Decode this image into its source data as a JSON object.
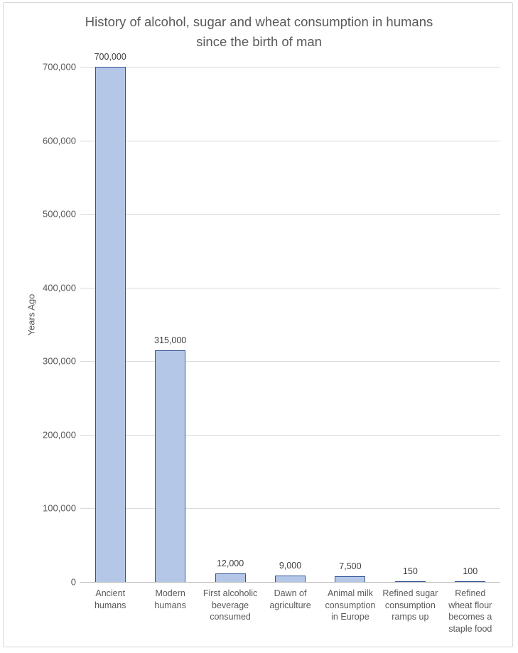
{
  "window": {
    "background": "#FFFFFF",
    "border_color": "#D9D9D9"
  },
  "chart_data": {
    "type": "bar",
    "title": "History of alcohol, sugar and wheat consumption in humans since the birth of man",
    "xlabel": "",
    "ylabel": "Years Ago",
    "categories": [
      "Ancient humans",
      "Modern humans",
      "First alcoholic beverage consumed",
      "Dawn of agriculture",
      "Animal milk consumption in Europe",
      "Refined sugar consumption ramps up",
      "Refined wheat flour becomes a staple food"
    ],
    "category_lines": [
      [
        "Ancient",
        "humans"
      ],
      [
        "Modern",
        "humans"
      ],
      [
        "First alcoholic",
        "beverage",
        "consumed"
      ],
      [
        "Dawn of",
        "agriculture"
      ],
      [
        "Animal milk",
        "consumption",
        "in Europe"
      ],
      [
        "Refined sugar",
        "consumption",
        "ramps up"
      ],
      [
        "Refined",
        "wheat flour",
        "becomes a",
        "staple food"
      ]
    ],
    "values": [
      700000,
      315000,
      12000,
      9000,
      7500,
      150,
      100
    ],
    "data_labels": [
      "700,000",
      "315,000",
      "12,000",
      "9,000",
      "7,500",
      "150",
      "100"
    ],
    "ylim": [
      0,
      700000
    ],
    "ytick_interval": 100000,
    "ytick_labels": [
      "0",
      "100,000",
      "200,000",
      "300,000",
      "400,000",
      "500,000",
      "600,000",
      "700,000"
    ],
    "grid": true,
    "legend": false,
    "colors": {
      "bar_fill": "#B4C7E7",
      "bar_border": "#305496",
      "gridline": "#D9D9D9",
      "axis_line": "#BFBFBF",
      "chart_border": "#D9D9D9",
      "title_text": "#595959",
      "axis_text": "#595959",
      "data_label_text": "#404040"
    }
  }
}
